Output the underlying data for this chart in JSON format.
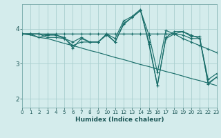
{
  "xlabel": "Humidex (Indice chaleur)",
  "ylabel": "",
  "bg_color": "#d4ecec",
  "grid_color": "#aacfcf",
  "line_color": "#1a6e6a",
  "lines": [
    [
      3.85,
      3.85,
      3.75,
      3.82,
      3.82,
      3.75,
      3.45,
      3.72,
      3.62,
      3.62,
      3.85,
      3.62,
      4.15,
      4.32,
      4.52,
      3.62,
      2.38,
      3.75,
      3.92,
      3.92,
      3.78,
      3.78,
      2.42,
      2.62
    ],
    [
      3.85,
      3.85,
      3.85,
      3.85,
      3.85,
      3.85,
      3.85,
      3.85,
      3.85,
      3.85,
      3.85,
      3.85,
      3.85,
      3.85,
      3.85,
      3.85,
      3.85,
      3.85,
      3.85,
      3.72,
      3.62,
      3.52,
      3.42,
      3.32
    ],
    [
      3.85,
      3.85,
      3.85,
      3.75,
      3.75,
      3.72,
      3.62,
      3.75,
      3.62,
      3.62,
      3.82,
      3.62,
      4.12,
      4.32,
      4.52,
      3.82,
      2.75,
      3.95,
      3.85,
      3.92,
      3.82,
      3.72,
      2.55,
      2.72
    ],
    [
      3.85,
      3.85,
      3.85,
      3.82,
      3.82,
      3.72,
      3.52,
      3.62,
      3.62,
      3.62,
      3.85,
      3.72,
      4.22,
      4.35,
      4.55,
      3.55,
      2.38,
      3.72,
      3.85,
      3.82,
      3.72,
      3.72,
      2.45,
      2.62
    ],
    [
      3.85,
      3.82,
      3.75,
      3.72,
      3.65,
      3.58,
      3.52,
      3.45,
      3.38,
      3.32,
      3.25,
      3.18,
      3.12,
      3.05,
      2.98,
      2.92,
      2.85,
      2.78,
      2.72,
      2.65,
      2.58,
      2.52,
      2.45,
      2.38
    ]
  ],
  "xmin": 0,
  "xmax": 23,
  "ymin": 1.75,
  "ymax": 4.7,
  "yticks": [
    2,
    3,
    4
  ],
  "xticks": [
    0,
    1,
    2,
    3,
    4,
    5,
    6,
    7,
    8,
    9,
    10,
    11,
    12,
    13,
    14,
    15,
    16,
    17,
    18,
    19,
    20,
    21,
    22,
    23
  ],
  "xtick_fontsize": 5.2,
  "ytick_fontsize": 6.5,
  "xlabel_fontsize": 6.5,
  "linewidth": 0.85,
  "marker_size": 3.5,
  "marker_lw": 0.8
}
